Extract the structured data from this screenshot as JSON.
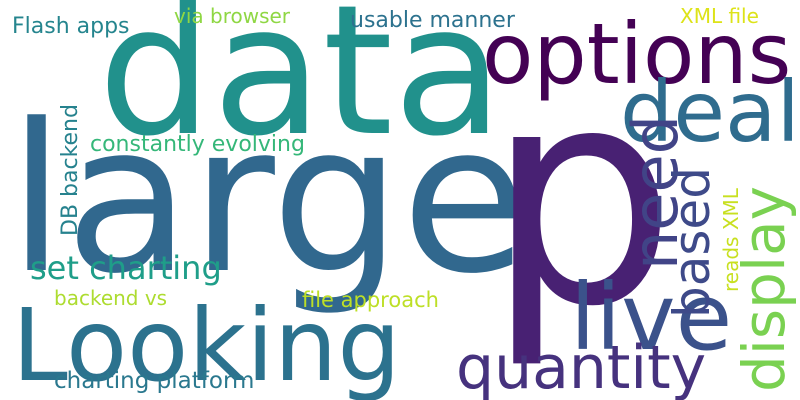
{
  "word_cloud": {
    "words": [
      {
        "id": "large",
        "text": "large",
        "color": "#31688e"
      },
      {
        "id": "data",
        "text": "data",
        "color": "#21918c"
      },
      {
        "id": "p",
        "text": "p",
        "color": "#482173"
      },
      {
        "id": "looking",
        "text": "Looking",
        "color": "#2c728e"
      },
      {
        "id": "options",
        "text": "options",
        "color": "#440154"
      },
      {
        "id": "deal",
        "text": "deal",
        "color": "#2f6c8e"
      },
      {
        "id": "live",
        "text": "live",
        "color": "#3b528b"
      },
      {
        "id": "quantity",
        "text": "quantity",
        "color": "#46327e"
      },
      {
        "id": "need",
        "text": "need",
        "color": "#414487"
      },
      {
        "id": "based",
        "text": "based",
        "color": "#3e4a89"
      },
      {
        "id": "display",
        "text": "display",
        "color": "#7ad151"
      },
      {
        "id": "set-charting",
        "text": "set charting",
        "color": "#1f9e89"
      },
      {
        "id": "charting-platform",
        "text": "charting platform",
        "color": "#2a788e"
      },
      {
        "id": "constantly-evolving",
        "text": "constantly evolving",
        "color": "#35b779"
      },
      {
        "id": "usable-manner",
        "text": "usable manner",
        "color": "#2c728e"
      },
      {
        "id": "flash-apps",
        "text": "Flash apps",
        "color": "#25858e"
      },
      {
        "id": "via-browser",
        "text": "via browser",
        "color": "#8fd744"
      },
      {
        "id": "xml-file",
        "text": "XML file",
        "color": "#dde318"
      },
      {
        "id": "db-backend",
        "text": "DB backend",
        "color": "#26828e"
      },
      {
        "id": "backend-vs",
        "text": "backend vs",
        "color": "#addc30"
      },
      {
        "id": "file-approach",
        "text": "file approach",
        "color": "#bddf26"
      },
      {
        "id": "reads-xml",
        "text": "reads XML",
        "color": "#c8e020"
      }
    ]
  }
}
